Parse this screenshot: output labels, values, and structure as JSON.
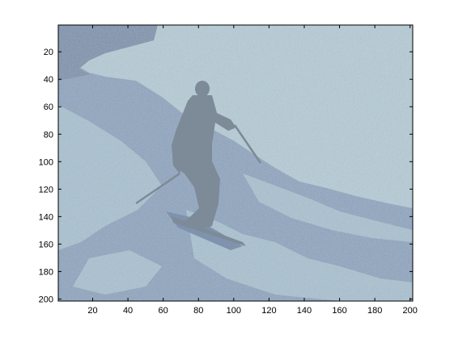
{
  "figure": {
    "type": "image-plot",
    "xlim": [
      0.5,
      201.5
    ],
    "ylim": [
      0.5,
      201.5
    ],
    "y_direction": "reverse",
    "xticks": [
      "20",
      "40",
      "60",
      "80",
      "100",
      "120",
      "140",
      "160",
      "180",
      "200"
    ],
    "yticks": [
      "20",
      "40",
      "60",
      "80",
      "100",
      "120",
      "140",
      "160",
      "180",
      "200"
    ],
    "colors": {
      "sky": "#b5cdd8",
      "snow_light": "#a9c2d2",
      "slope": "#8ea5c0",
      "shadow": "#7f93ae",
      "skier": "#7d8a98",
      "axis": "#000000",
      "background": "#ffffff"
    }
  }
}
